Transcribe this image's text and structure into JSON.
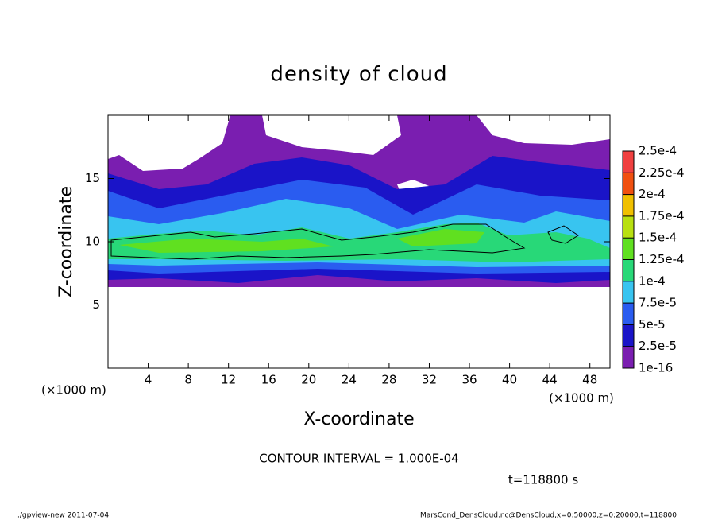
{
  "chart_data": {
    "type": "contour",
    "title": "density of cloud",
    "x_label": "X-coordinate",
    "y_label": "Z-coordinate",
    "x_unit": "(×1000 m)",
    "y_unit": "(×1000 m)",
    "xlim": [
      0,
      50
    ],
    "xticks": [
      4,
      8,
      12,
      16,
      20,
      24,
      28,
      32,
      36,
      40,
      44,
      48
    ],
    "ylim": [
      0,
      20
    ],
    "yticks": [
      5,
      10,
      15
    ],
    "colorbar": {
      "levels": [
        {
          "value": 1e-16,
          "label": "1e-16"
        },
        {
          "value": 2.5e-05,
          "label": "2.5e-5"
        },
        {
          "value": 5e-05,
          "label": "5e-5"
        },
        {
          "value": 7.5e-05,
          "label": "7.5e-5"
        },
        {
          "value": 0.0001,
          "label": "1e-4"
        },
        {
          "value": 0.000125,
          "label": "1.25e-4"
        },
        {
          "value": 0.00015,
          "label": "1.5e-4"
        },
        {
          "value": 0.000175,
          "label": "1.75e-4"
        },
        {
          "value": 0.0002,
          "label": "2e-4"
        },
        {
          "value": 0.000225,
          "label": "2.25e-4"
        },
        {
          "value": 0.00025,
          "label": "2.5e-4"
        }
      ],
      "colors": [
        "#7a1eb0",
        "#1a14c8",
        "#2a5cf0",
        "#38c4f0",
        "#28d878",
        "#60e020",
        "#b8e010",
        "#f0c000",
        "#f05010",
        "#f04040"
      ]
    },
    "contour_interval": "CONTOUR INTERVAL = 1.000E-04",
    "time": "t=118800 s"
  },
  "footer": {
    "left": "./gpview-new  2011-07-04",
    "right": "MarsCond_DensCloud.nc@DensCloud,x=0:50000,z=0:20000,t=118800"
  }
}
